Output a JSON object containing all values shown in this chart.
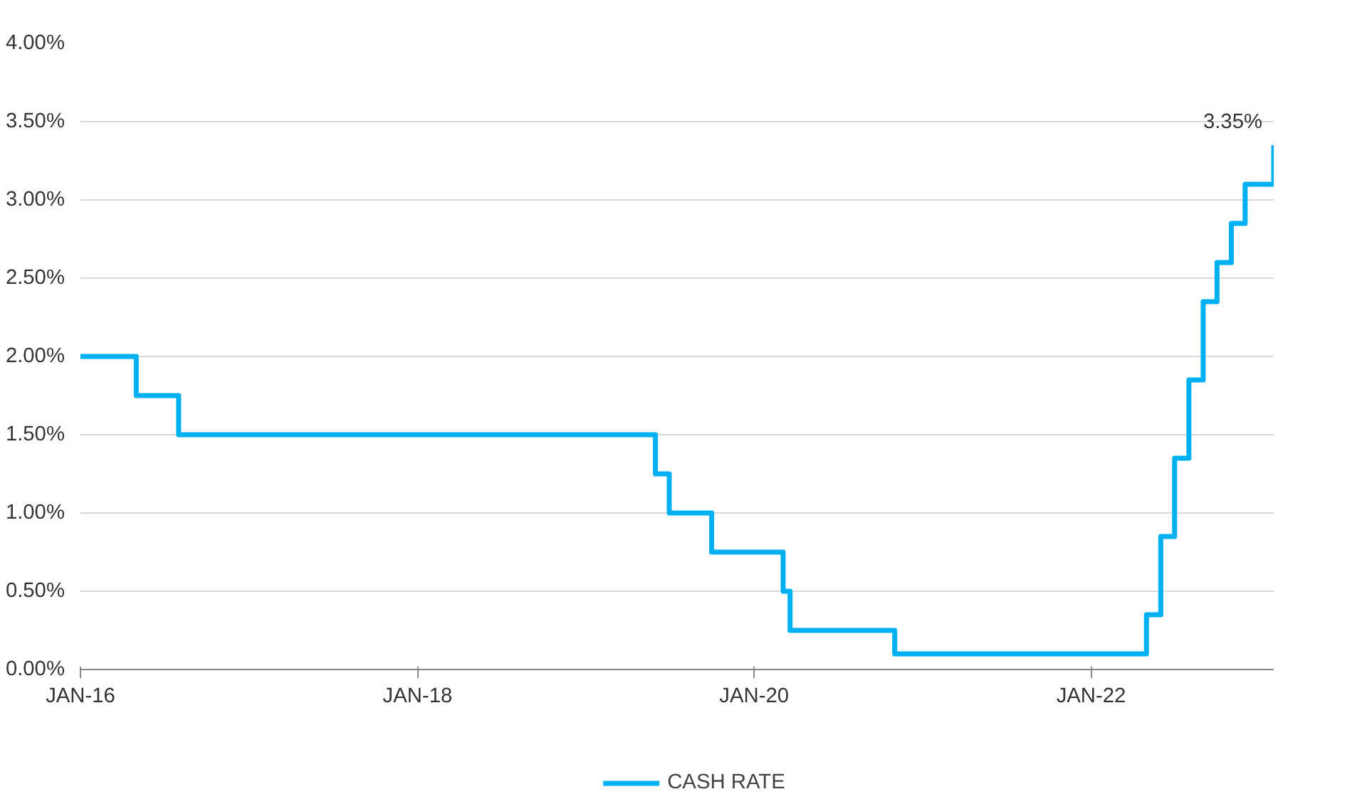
{
  "chart_data": {
    "type": "step",
    "x": [
      "2016-01",
      "2016-05",
      "2016-08",
      "2019-06",
      "2019-07",
      "2019-10",
      "2020-03-04",
      "2020-03-19",
      "2020-11",
      "2022-05",
      "2022-06",
      "2022-07",
      "2022-08",
      "2022-09",
      "2022-10",
      "2022-11",
      "2022-12",
      "2023-02"
    ],
    "series": [
      {
        "name": "CASH RATE",
        "color": "#00b0f0",
        "values": [
          2.0,
          1.75,
          1.5,
          1.25,
          1.0,
          0.75,
          0.5,
          0.25,
          0.1,
          0.35,
          0.85,
          1.35,
          1.85,
          2.35,
          2.6,
          2.85,
          3.1,
          3.35
        ]
      }
    ],
    "xlim": [
      "2016-01",
      "2023-02"
    ],
    "xticks": [
      {
        "value": "2016-01",
        "label": "JAN-16"
      },
      {
        "value": "2018-01",
        "label": "JAN-18"
      },
      {
        "value": "2020-01",
        "label": "JAN-20"
      },
      {
        "value": "2022-01",
        "label": "JAN-22"
      }
    ],
    "ylim": [
      0,
      4
    ],
    "yticks": [
      {
        "value": 0,
        "label": "0.00%"
      },
      {
        "value": 0.5,
        "label": "0.50%"
      },
      {
        "value": 1,
        "label": "1.00%"
      },
      {
        "value": 1.5,
        "label": "1.50%"
      },
      {
        "value": 2,
        "label": "2.00%"
      },
      {
        "value": 2.5,
        "label": "2.50%"
      },
      {
        "value": 3,
        "label": "3.00%"
      },
      {
        "value": 3.5,
        "label": "3.50%"
      },
      {
        "value": 4,
        "label": "4.00%"
      }
    ],
    "annotations": [
      {
        "text": "3.35%",
        "x": "2023-02",
        "y": 3.35
      }
    ],
    "grid": "y",
    "legend": "bottom",
    "line_style": "solid"
  }
}
